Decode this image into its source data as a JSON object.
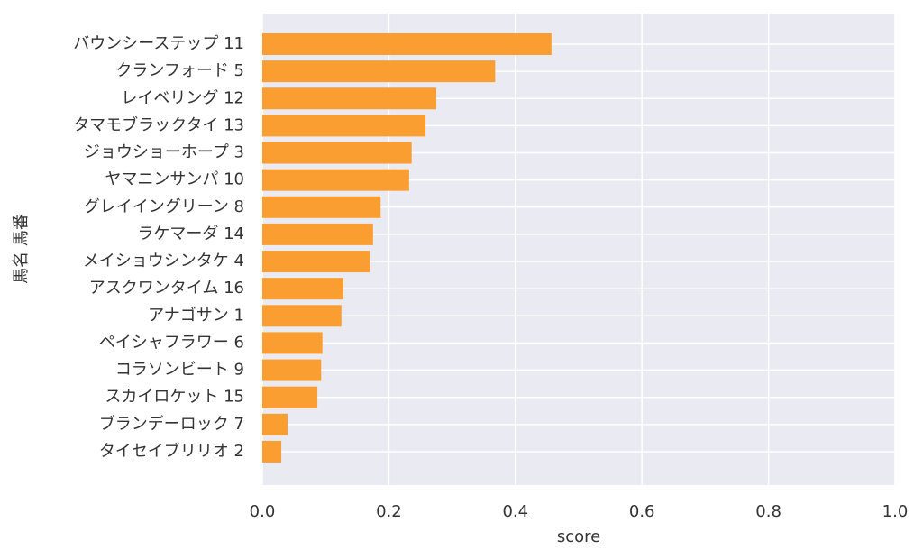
{
  "chart_data": {
    "type": "barh",
    "categories": [
      "バウンシーステップ 11",
      "クランフォード 5",
      "レイベリング 12",
      "タマモブラックタイ 13",
      "ジョウショーホープ 3",
      "ヤマニンサンパ 10",
      "グレイイングリーン 8",
      "ラケマーダ 14",
      "メイショウシンタケ 4",
      "アスクワンタイム 16",
      "アナゴサン 1",
      "ペイシャフラワー 6",
      "コラソンビート 9",
      "スカイロケット 15",
      "ブランデーロック 7",
      "タイセイブリリオ 2"
    ],
    "values": [
      0.457,
      0.368,
      0.275,
      0.258,
      0.236,
      0.232,
      0.187,
      0.175,
      0.17,
      0.128,
      0.125,
      0.095,
      0.093,
      0.087,
      0.04,
      0.03
    ],
    "color": "#fb9e32",
    "xlabel": "score",
    "ylabel": "馬名 馬番",
    "xlim": [
      0,
      1
    ],
    "xticks": [
      {
        "value": 0,
        "label": "0.0"
      },
      0.2,
      0.4,
      0.6,
      0.8,
      {
        "value": 1,
        "label": "1.0"
      }
    ],
    "grid": true
  }
}
